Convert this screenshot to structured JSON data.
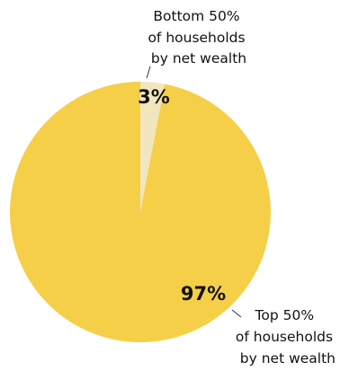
{
  "chart_data": {
    "type": "pie",
    "title": "",
    "slices": [
      {
        "label_lines": [
          "Bottom 50%",
          "of households",
          "by net wealth"
        ],
        "value": 3,
        "value_label": "3%",
        "color": "#f1e6bd"
      },
      {
        "label_lines": [
          "Top 50%",
          "of households",
          "by net wealth"
        ],
        "value": 97,
        "value_label": "97%",
        "color": "#f5cf48"
      }
    ],
    "start_angle_deg": 0,
    "direction": "clockwise",
    "legend": "none"
  }
}
